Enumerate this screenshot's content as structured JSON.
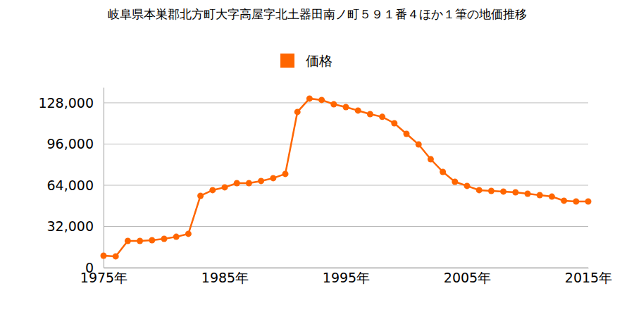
{
  "chart_data": {
    "type": "line",
    "title": "岐阜県本巣郡北方町大字高屋字北土器田南ノ町５９１番４ほか１筆の地価推移",
    "x": [
      1975,
      1976,
      1977,
      1978,
      1979,
      1980,
      1981,
      1982,
      1983,
      1984,
      1985,
      1986,
      1987,
      1988,
      1989,
      1990,
      1991,
      1992,
      1993,
      1994,
      1995,
      1996,
      1997,
      1998,
      1999,
      2000,
      2001,
      2002,
      2003,
      2004,
      2005,
      2006,
      2007,
      2008,
      2009,
      2010,
      2011,
      2012,
      2013,
      2014,
      2015
    ],
    "series": [
      {
        "name": "価格",
        "color": "#ff6600",
        "values": [
          9300,
          8800,
          20800,
          20800,
          21300,
          22400,
          24000,
          26300,
          55800,
          60200,
          62400,
          65600,
          65600,
          67300,
          69500,
          72800,
          120900,
          131300,
          130200,
          126900,
          124700,
          122000,
          119200,
          117100,
          112100,
          103900,
          95700,
          84200,
          74400,
          66700,
          63500,
          60200,
          59600,
          59100,
          58500,
          57400,
          56300,
          55200,
          52000,
          51400,
          51400
        ]
      }
    ],
    "xlim": [
      1975,
      2015
    ],
    "xticks": [
      {
        "value": 1975,
        "label": "1975年"
      },
      {
        "value": 1985,
        "label": "1985年"
      },
      {
        "value": 1995,
        "label": "1995年"
      },
      {
        "value": 2005,
        "label": "2005年"
      },
      {
        "value": 2015,
        "label": "2015年"
      }
    ],
    "ylim": [
      0,
      140000
    ],
    "yticks": [
      0,
      {
        "value": 32000,
        "label": "32,000"
      },
      {
        "value": 64000,
        "label": "64,000"
      },
      {
        "value": 96000,
        "label": "96,000"
      },
      {
        "value": 128000,
        "label": "128,000"
      }
    ],
    "grid": true,
    "legend": "top",
    "marker": "circle",
    "line_style": "solid"
  }
}
